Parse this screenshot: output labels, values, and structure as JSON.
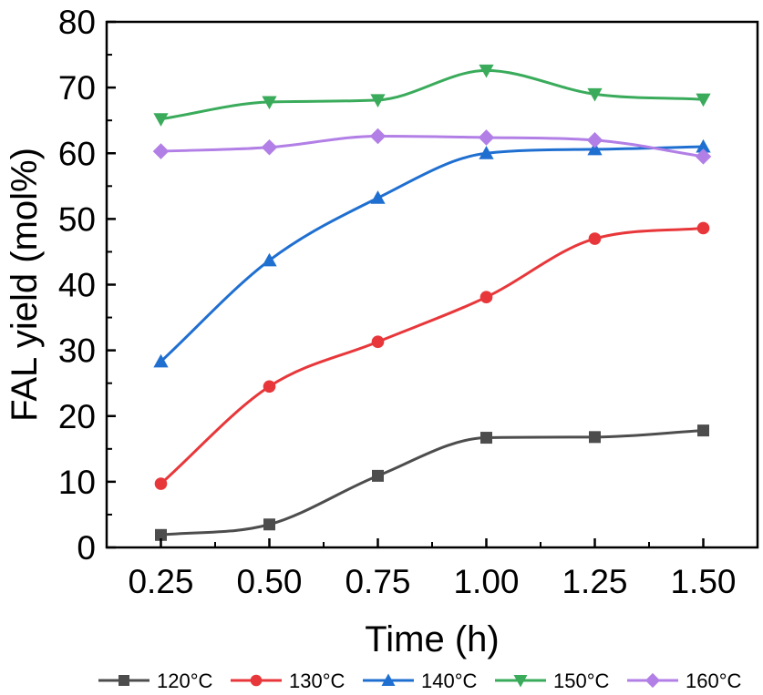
{
  "chart_data": {
    "type": "line",
    "xlabel": "Time (h)",
    "ylabel": "FAL yield (mol%)",
    "xlim": [
      0.125,
      1.625
    ],
    "ylim": [
      0,
      80
    ],
    "x_ticks": [
      "0.25",
      "0.50",
      "0.75",
      "1.00",
      "1.25",
      "1.50"
    ],
    "y_ticks": [
      "0",
      "10",
      "20",
      "30",
      "40",
      "50",
      "60",
      "70",
      "80"
    ],
    "x": [
      0.25,
      0.5,
      0.75,
      1.0,
      1.25,
      1.5
    ],
    "smooth": true,
    "grid": false,
    "legend_position": "bottom",
    "series": [
      {
        "name": "120°C",
        "color": "#4d4d4d",
        "marker": "square",
        "values": [
          1.9,
          3.5,
          10.9,
          16.7,
          16.8,
          17.8
        ]
      },
      {
        "name": "130°C",
        "color": "#e8373a",
        "marker": "circle",
        "values": [
          9.7,
          24.5,
          31.3,
          38.1,
          47.0,
          48.6
        ]
      },
      {
        "name": "140°C",
        "color": "#1f6fd1",
        "marker": "triangle-up",
        "values": [
          28.3,
          43.7,
          53.2,
          60.0,
          60.6,
          61.0
        ]
      },
      {
        "name": "150°C",
        "color": "#3aab5b",
        "marker": "triangle-down",
        "values": [
          65.2,
          67.8,
          68.1,
          72.6,
          69.0,
          68.2
        ]
      },
      {
        "name": "160°C",
        "color": "#b27fe6",
        "marker": "diamond",
        "values": [
          60.3,
          60.9,
          62.6,
          62.4,
          62.0,
          59.5
        ]
      }
    ]
  }
}
